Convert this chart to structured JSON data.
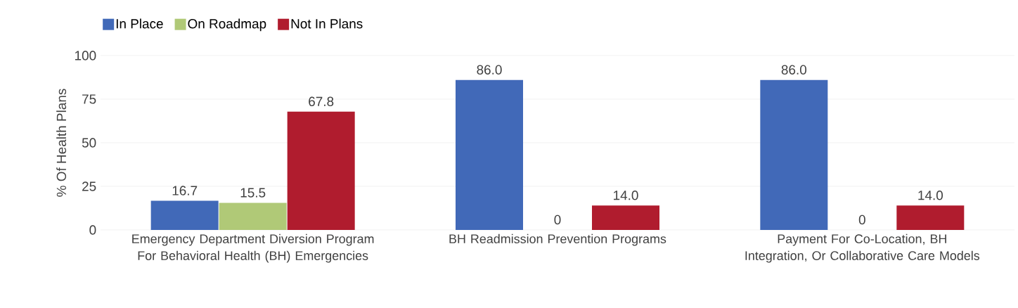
{
  "chart_data": {
    "type": "bar",
    "ylabel": "% Of Health Plans",
    "categories": [
      "Emergency Department Diversion Program For Behavioral Health (BH) Emergencies",
      "BH Readmission Prevention Programs",
      "Payment For Co-Location, BH Integration, Or Collaborative Care Models"
    ],
    "series": [
      {
        "name": "In Place",
        "color": "#4169b8",
        "values": [
          16.7,
          86.0,
          86.0
        ],
        "value_labels": [
          "16.7",
          "86.0",
          "86.0"
        ]
      },
      {
        "name": "On Roadmap",
        "color": "#b0c977",
        "values": [
          15.5,
          0,
          0
        ],
        "value_labels": [
          "15.5",
          "0",
          "0"
        ]
      },
      {
        "name": "Not In Plans",
        "color": "#b01c2e",
        "values": [
          67.8,
          14.0,
          14.0
        ],
        "value_labels": [
          "67.8",
          "14.0",
          "14.0"
        ]
      }
    ],
    "ylim": [
      0,
      100
    ],
    "yticks": [
      0,
      25,
      50,
      75,
      100
    ],
    "grid": "y",
    "legend": "top left"
  }
}
